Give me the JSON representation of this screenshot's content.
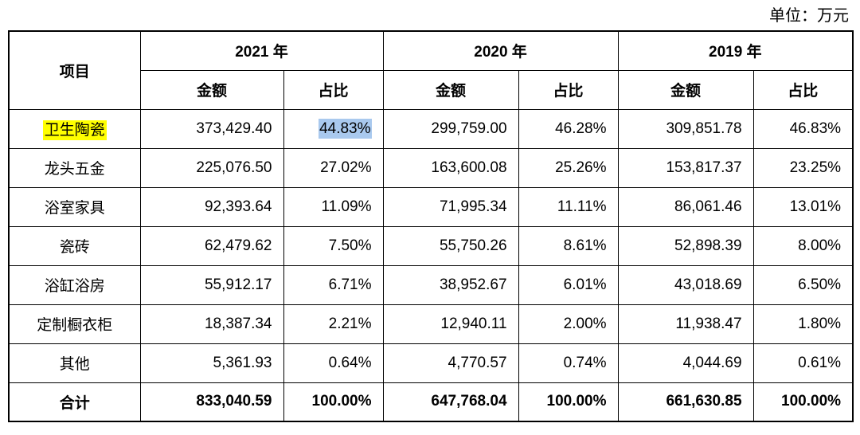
{
  "unit_label": "单位：万元",
  "colors": {
    "label_highlight": "#ffff00",
    "value_highlight": "#a9c9ee",
    "border": "#000000"
  },
  "table": {
    "corner_label": "项目",
    "year_groups": [
      {
        "year": "2021 年",
        "sub": [
          "金额",
          "占比"
        ]
      },
      {
        "year": "2020 年",
        "sub": [
          "金额",
          "占比"
        ]
      },
      {
        "year": "2019 年",
        "sub": [
          "金额",
          "占比"
        ]
      }
    ],
    "rows": [
      {
        "label": "卫生陶瓷",
        "values": [
          "373,429.40",
          "44.83%",
          "299,759.00",
          "46.28%",
          "309,851.78",
          "46.83%"
        ]
      },
      {
        "label": "龙头五金",
        "values": [
          "225,076.50",
          "27.02%",
          "163,600.08",
          "25.26%",
          "153,817.37",
          "23.25%"
        ]
      },
      {
        "label": "浴室家具",
        "values": [
          "92,393.64",
          "11.09%",
          "71,995.34",
          "11.11%",
          "86,061.46",
          "13.01%"
        ]
      },
      {
        "label": "瓷砖",
        "values": [
          "62,479.62",
          "7.50%",
          "55,750.26",
          "8.61%",
          "52,898.39",
          "8.00%"
        ]
      },
      {
        "label": "浴缸浴房",
        "values": [
          "55,912.17",
          "6.71%",
          "38,952.67",
          "6.01%",
          "43,018.69",
          "6.50%"
        ]
      },
      {
        "label": "定制橱衣柜",
        "values": [
          "18,387.34",
          "2.21%",
          "12,940.11",
          "2.00%",
          "11,938.47",
          "1.80%"
        ]
      },
      {
        "label": "其他",
        "values": [
          "5,361.93",
          "0.64%",
          "4,770.57",
          "0.74%",
          "4,044.69",
          "0.61%"
        ]
      }
    ],
    "total": {
      "label": "合计",
      "values": [
        "833,040.59",
        "100.00%",
        "647,768.04",
        "100.00%",
        "661,630.85",
        "100.00%"
      ]
    }
  }
}
